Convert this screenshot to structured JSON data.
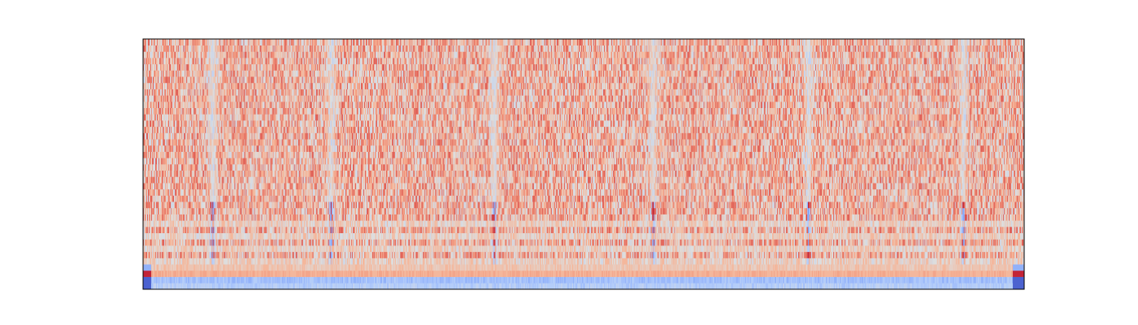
{
  "chart_data": {
    "type": "heatmap",
    "colormap": "coolwarm",
    "colormap_colors": [
      "#3b4cc0",
      "#7396f5",
      "#b0cbfc",
      "#dddddd",
      "#f6b395",
      "#e56b5d",
      "#b40426"
    ],
    "axes_visible": false,
    "rows": 40,
    "columns": 1080,
    "value_range": [
      -1,
      1
    ],
    "typical_background_value": 0.3,
    "event_column_centers": [
      85,
      230,
      430,
      625,
      815,
      1005
    ],
    "event_description_values": {
      "low_rows_event_value": -0.8,
      "high_rows_event_value": -0.2
    },
    "bottom_rows_values": {
      "row_0": -0.3,
      "row_1": -0.4,
      "row_2": 0.9,
      "row_3": -0.5
    }
  }
}
